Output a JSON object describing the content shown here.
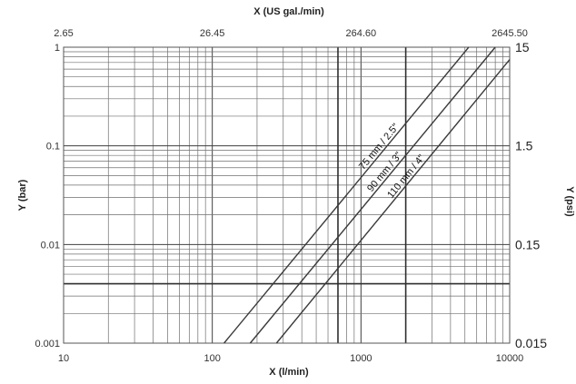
{
  "chart_data": {
    "type": "line",
    "log_x": true,
    "log_y": true,
    "grid": true,
    "xlim": [
      10,
      10000
    ],
    "ylim": [
      0.001,
      1
    ],
    "xlabel": "X (l/min)",
    "ylabel": "Y (bar)",
    "x2label": "X (US gal./min)",
    "y2label": "Y (psi)",
    "x_ticks": [
      "10",
      "100",
      "1000",
      "10000"
    ],
    "y_ticks": [
      "0.001",
      "0.01",
      "0.1",
      "1"
    ],
    "x2_ticks": [
      "2.65",
      "26.45",
      "264.60",
      "2645.50"
    ],
    "y2_ticks": [
      "0.015",
      "0.15",
      "1.5",
      "15"
    ],
    "series": [
      {
        "name": "75 mm / 2.5\"",
        "x": [
          120,
          5300
        ],
        "y": [
          0.001,
          1
        ]
      },
      {
        "name": "90 mm / 3\"",
        "x": [
          180,
          8000
        ],
        "y": [
          0.001,
          1
        ]
      },
      {
        "name": "110 mm / 4\"",
        "x": [
          270,
          10000
        ],
        "y": [
          0.001,
          0.75
        ]
      }
    ],
    "colors": {
      "curve": "#3a3a3a",
      "grid": "#6f6f6f",
      "grid_major": "#3f3f3f"
    }
  }
}
